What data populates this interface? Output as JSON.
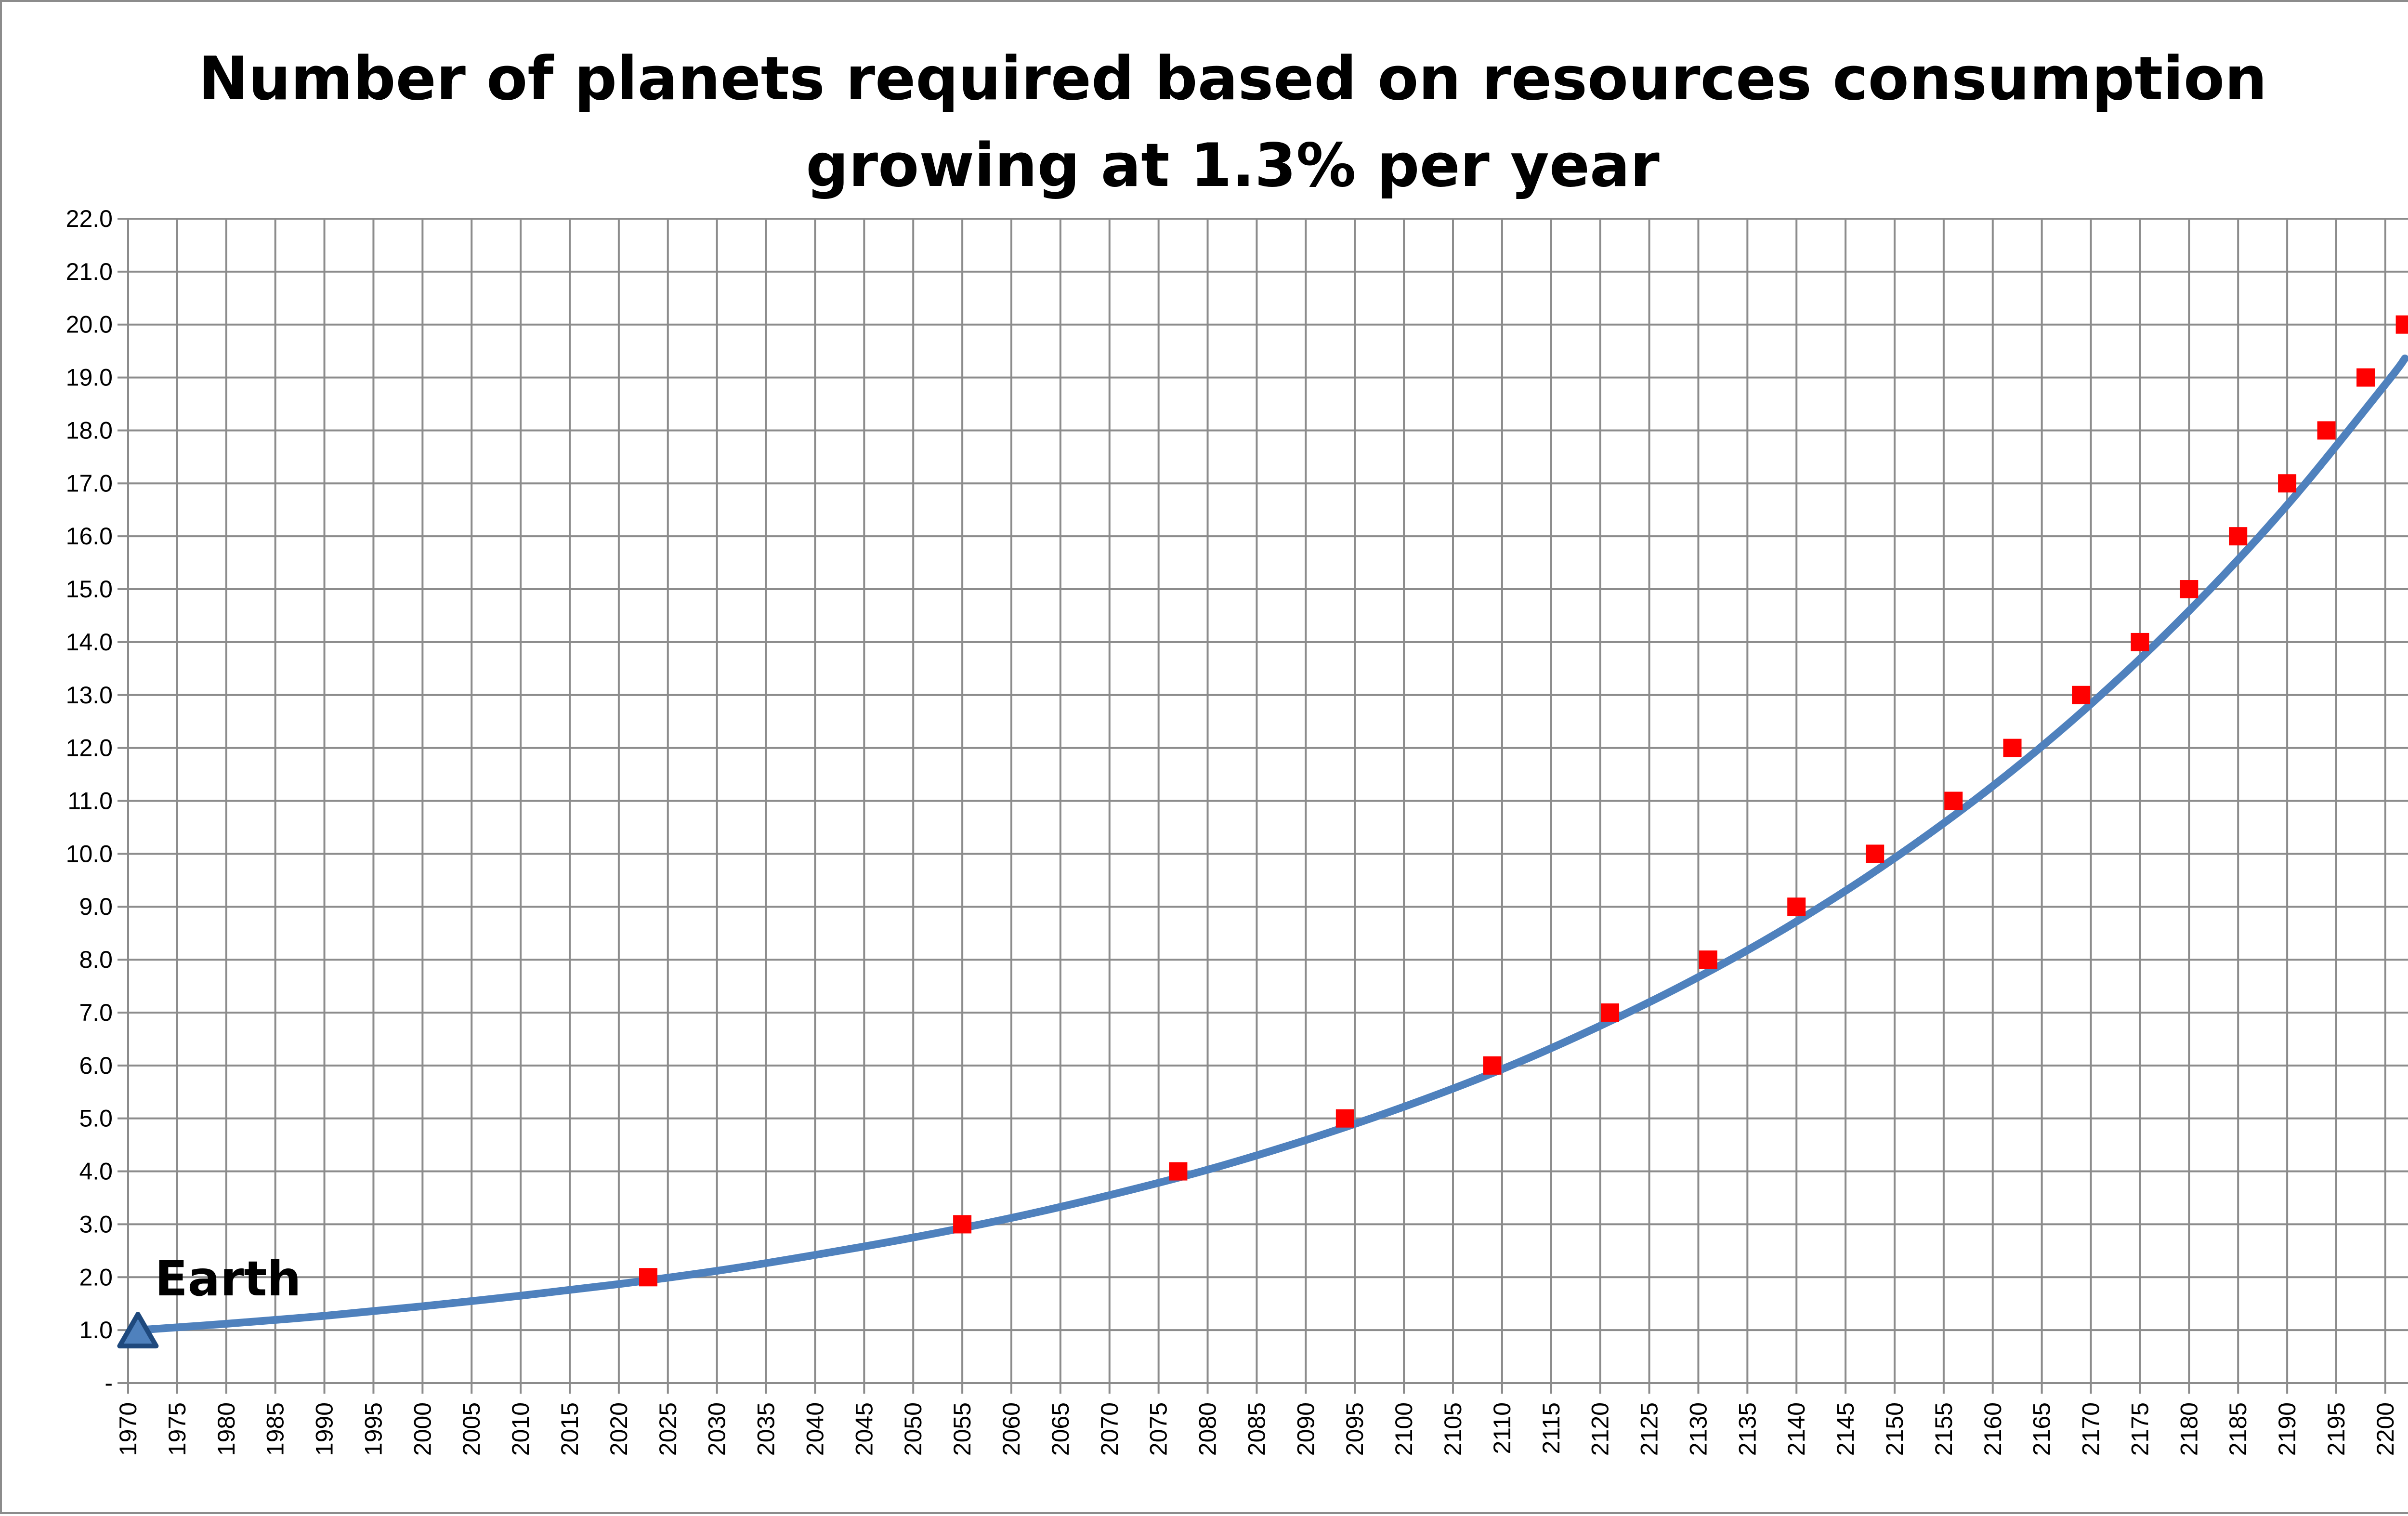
{
  "chart_data": {
    "type": "line",
    "title_lines": [
      "Number of planets required based on resources consumption",
      "growing at 1.3% per year"
    ],
    "xlabel": "",
    "ylabel": "",
    "xlim": [
      1970,
      2203
    ],
    "ylim": [
      0,
      22
    ],
    "x_ticks": [
      1970,
      1975,
      1980,
      1985,
      1990,
      1995,
      2000,
      2005,
      2010,
      2015,
      2020,
      2025,
      2030,
      2035,
      2040,
      2045,
      2050,
      2055,
      2060,
      2065,
      2070,
      2075,
      2080,
      2085,
      2090,
      2095,
      2100,
      2105,
      2110,
      2115,
      2120,
      2125,
      2130,
      2135,
      2140,
      2145,
      2150,
      2155,
      2160,
      2165,
      2170,
      2175,
      2180,
      2185,
      2190,
      2195,
      2200
    ],
    "y_ticks": [
      0,
      1,
      2,
      3,
      4,
      5,
      6,
      7,
      8,
      9,
      10,
      11,
      12,
      13,
      14,
      15,
      16,
      17,
      18,
      19,
      20,
      21,
      22
    ],
    "y_tick_labels": [
      "-",
      "1.0",
      "2.0",
      "3.0",
      "4.0",
      "5.0",
      "6.0",
      "7.0",
      "8.0",
      "9.0",
      "10.0",
      "11.0",
      "12.0",
      "13.0",
      "14.0",
      "15.0",
      "16.0",
      "17.0",
      "18.0",
      "19.0",
      "20.0",
      "21.0",
      "22.0"
    ],
    "grid": true,
    "growth_rate": 0.013,
    "curve": {
      "color": "#4f81bd",
      "x": [
        1971,
        1980,
        1990,
        2000,
        2010,
        2020,
        2030,
        2040,
        2050,
        2060,
        2070,
        2080,
        2090,
        2100,
        2110,
        2120,
        2130,
        2140,
        2150,
        2160,
        2170,
        2180,
        2190,
        2200,
        2202
      ],
      "y": [
        1.0,
        1.12,
        1.27,
        1.45,
        1.65,
        1.87,
        2.12,
        2.42,
        2.75,
        3.12,
        3.55,
        4.03,
        4.59,
        5.22,
        5.93,
        6.75,
        7.67,
        8.72,
        9.92,
        11.28,
        12.83,
        14.59,
        16.59,
        18.87,
        19.36
      ]
    },
    "markers": {
      "color": "#ff0000",
      "x": [
        2023,
        2055,
        2077,
        2094,
        2109,
        2121,
        2131,
        2140,
        2148,
        2156,
        2162,
        2169,
        2175,
        2180,
        2185,
        2190,
        2194,
        2198,
        2202
      ],
      "y": [
        2,
        3,
        4,
        5,
        6,
        7,
        8,
        9,
        10,
        11,
        12,
        13,
        14,
        15,
        16,
        17,
        18,
        19,
        20
      ]
    },
    "earth_marker": {
      "x": 1971,
      "y": 1.0,
      "label": "Earth",
      "color": "#4f81bd"
    }
  }
}
